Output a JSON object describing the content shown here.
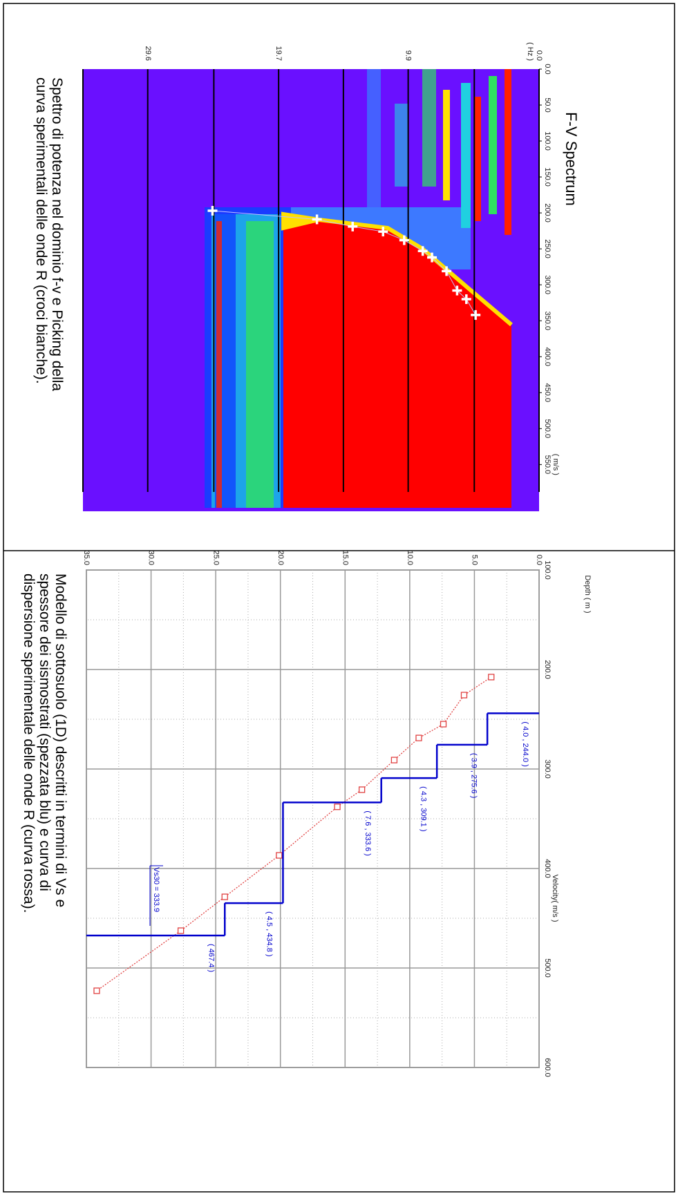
{
  "chart_data": [
    {
      "type": "spectrum",
      "title": "F-V Spectrum",
      "x_label": "( m/s )",
      "y_label": "( Hz )",
      "caption": [
        "Spettro di potenza nel dominio f-v e Picking della",
        "curva sperimentali delle onde R (croci bianche)."
      ],
      "xlim": [
        0,
        615
      ],
      "ylim": [
        0,
        34.5
      ],
      "xticks": [
        {
          "value": 0,
          "label": "0.0"
        },
        {
          "value": 50,
          "label": "50.0"
        },
        {
          "value": 100,
          "label": "100.0"
        },
        {
          "value": 150,
          "label": "150.0"
        },
        {
          "value": 200,
          "label": "200.0"
        },
        {
          "value": 250,
          "label": "250.0"
        },
        {
          "value": 300,
          "label": "300.0"
        },
        {
          "value": 350,
          "label": "350.0"
        },
        {
          "value": 400,
          "label": "400.0"
        },
        {
          "value": 450,
          "label": "450.0"
        },
        {
          "value": 500,
          "label": "500.0"
        },
        {
          "value": 550,
          "label": "550.0"
        }
      ],
      "yticks": [
        {
          "value": 0,
          "label": "0.0"
        },
        9.9,
        19.7,
        29.6
      ],
      "minor_yticks": [
        4.9,
        14.8,
        24.6,
        34.5
      ],
      "picks": {
        "color": "#ffffff",
        "x": [
          197,
          209,
          219,
          226,
          238,
          253,
          262,
          281,
          308,
          320,
          342
        ],
        "y": [
          24.7,
          16.8,
          14.1,
          11.8,
          10.2,
          8.8,
          8.1,
          7.0,
          6.2,
          5.5,
          4.8
        ]
      }
    },
    {
      "type": "profile",
      "x_label": "Velocity( m/s )",
      "y_label": "Depth ( m )",
      "caption": [
        "Modello di sottosuolo (1D) descritti in termini di Vs e",
        "spessore dei sismostrati (spezzata blu) e curva di",
        "dispersione sperimentale delle onde R (curva rossa)."
      ],
      "xlim": [
        100,
        600
      ],
      "ylim": [
        0,
        35
      ],
      "xticks": [
        {
          "value": 100,
          "label": "100.0"
        },
        {
          "value": 200,
          "label": "200.0"
        },
        {
          "value": 300,
          "label": "300.0"
        },
        {
          "value": 400,
          "label": "400.0"
        },
        {
          "value": 500,
          "label": "500.0"
        },
        {
          "value": 600,
          "label": "600.0"
        }
      ],
      "yticks": [
        {
          "value": 0,
          "label": "0.0"
        },
        {
          "value": 5,
          "label": "5.0"
        },
        {
          "value": 10,
          "label": "10.0"
        },
        {
          "value": 15,
          "label": "15.0"
        },
        {
          "value": 20,
          "label": "20.0"
        },
        {
          "value": 25,
          "label": "25.0"
        },
        {
          "value": 30,
          "label": "30.0"
        },
        {
          "value": 35,
          "label": "35.0"
        }
      ],
      "grid": true,
      "layers": {
        "color": "#0000cc",
        "thickness": [
          4.0,
          3.9,
          4.3,
          7.6,
          4.5,
          null
        ],
        "vs": [
          244.0,
          275.6,
          309.1,
          333.6,
          434.8,
          467.4
        ],
        "labels": [
          "( 4.0 , 244.0 )",
          "( 3.9 , 275.6 )",
          "( 4.3 , 309.1 )",
          "( 7.6 , 333.6 )",
          "( 4.5 , 434.8 )",
          "( 467.4 )"
        ]
      },
      "vs30": {
        "value": 333.9,
        "label": "Vs30 = 333.9"
      },
      "dispersion": {
        "color": "#e04040",
        "x": [
          207.6,
          225.7,
          254.9,
          268.8,
          291.0,
          320.8,
          338.0,
          386.8,
          428.5,
          462.5,
          522.9
        ],
        "y": [
          3.7,
          5.8,
          7.4,
          9.3,
          11.2,
          13.7,
          15.6,
          20.1,
          24.3,
          27.7,
          34.2
        ]
      }
    }
  ]
}
